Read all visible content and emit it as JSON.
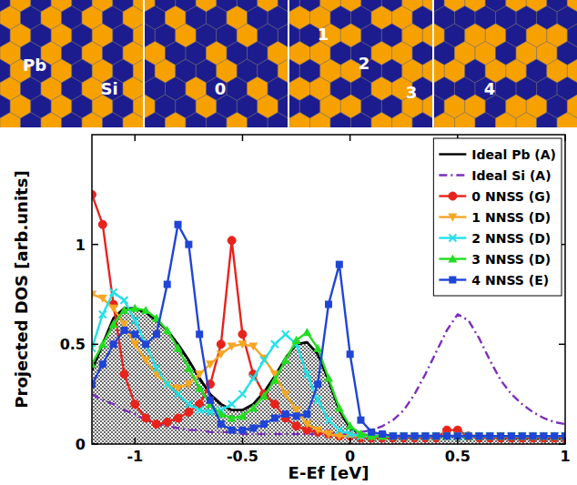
{
  "chart_data": {
    "type": "line",
    "x_label": "E-Ef [eV]",
    "y_label": "Projected DOS [arb.units]",
    "x": [
      -1.2,
      -1.15,
      -1.1,
      -1.05,
      -1.0,
      -0.95,
      -0.9,
      -0.85,
      -0.8,
      -0.75,
      -0.7,
      -0.65,
      -0.6,
      -0.55,
      -0.5,
      -0.45,
      -0.4,
      -0.35,
      -0.3,
      -0.25,
      -0.2,
      -0.15,
      -0.1,
      -0.05,
      0,
      0.05,
      0.1,
      0.15,
      0.2,
      0.25,
      0.3,
      0.35,
      0.4,
      0.45,
      0.5,
      0.55,
      0.6,
      0.65,
      0.7,
      0.75,
      0.8,
      0.85,
      0.9,
      0.95,
      1.0
    ],
    "xlim": [
      -1.2,
      1
    ],
    "xticks": [
      -1,
      -0.5,
      0,
      0.5,
      1
    ],
    "ylim": [
      0,
      1.55
    ],
    "yticks": [
      0,
      0.5,
      1
    ],
    "legend": "upper right",
    "series": [
      {
        "name": "Ideal Pb (A)",
        "type": "area",
        "color": "#000000",
        "line_style": "solid",
        "marker": "none",
        "values": [
          0.37,
          0.5,
          0.63,
          0.68,
          0.68,
          0.66,
          0.62,
          0.57,
          0.5,
          0.42,
          0.33,
          0.25,
          0.2,
          0.17,
          0.17,
          0.2,
          0.26,
          0.34,
          0.43,
          0.5,
          0.51,
          0.45,
          0.32,
          0.17,
          0.08,
          0.05,
          0.04,
          0.04,
          0.04,
          0.04,
          0.04,
          0.04,
          0.04,
          0.04,
          0.04,
          0.04,
          0.04,
          0.04,
          0.03,
          0.03,
          0.03,
          0.03,
          0.03,
          0.03,
          0.03
        ]
      },
      {
        "name": "Ideal Si (A)",
        "type": "line",
        "color": "#7b2fbe",
        "line_style": "dash-dot",
        "marker": "none",
        "values": [
          0.25,
          0.22,
          0.2,
          0.17,
          0.15,
          0.12,
          0.1,
          0.09,
          0.08,
          0.07,
          0.07,
          0.06,
          0.06,
          0.06,
          0.05,
          0.05,
          0.05,
          0.05,
          0.05,
          0.05,
          0.05,
          0.05,
          0.05,
          0.05,
          0.05,
          0.06,
          0.07,
          0.09,
          0.12,
          0.17,
          0.25,
          0.35,
          0.46,
          0.57,
          0.65,
          0.62,
          0.53,
          0.42,
          0.32,
          0.25,
          0.2,
          0.16,
          0.13,
          0.11,
          0.1
        ]
      },
      {
        "name": "0 NNSS (G)",
        "type": "line",
        "color": "#e8231c",
        "line_style": "solid",
        "marker": "circle",
        "values": [
          1.25,
          1.1,
          0.7,
          0.35,
          0.2,
          0.13,
          0.1,
          0.11,
          0.13,
          0.16,
          0.2,
          0.3,
          0.5,
          1.02,
          0.55,
          0.35,
          0.25,
          0.2,
          0.13,
          0.09,
          0.07,
          0.06,
          0.05,
          0.04,
          0.04,
          0.03,
          0.03,
          0.03,
          0.03,
          0.03,
          0.03,
          0.03,
          0.03,
          0.07,
          0.07,
          0.04,
          0.03,
          0.03,
          0.03,
          0.03,
          0.03,
          0.03,
          0.03,
          0.03,
          0.03
        ]
      },
      {
        "name": "1 NNSS (D)",
        "type": "line",
        "color": "#f5a623",
        "line_style": "solid",
        "marker": "triangle-down",
        "values": [
          0.75,
          0.73,
          0.68,
          0.6,
          0.5,
          0.42,
          0.35,
          0.3,
          0.28,
          0.3,
          0.35,
          0.4,
          0.45,
          0.49,
          0.5,
          0.49,
          0.43,
          0.35,
          0.25,
          0.17,
          0.1,
          0.07,
          0.05,
          0.04,
          0.04,
          0.04,
          0.04,
          0.04,
          0.04,
          0.04,
          0.04,
          0.04,
          0.04,
          0.04,
          0.04,
          0.04,
          0.04,
          0.04,
          0.04,
          0.04,
          0.04,
          0.04,
          0.04,
          0.04,
          0.04
        ]
      },
      {
        "name": "2 NNSS (D)",
        "type": "line",
        "color": "#22e0e8",
        "line_style": "solid",
        "marker": "x",
        "values": [
          0.48,
          0.65,
          0.76,
          0.72,
          0.62,
          0.5,
          0.38,
          0.3,
          0.25,
          0.2,
          0.17,
          0.16,
          0.17,
          0.2,
          0.25,
          0.33,
          0.42,
          0.5,
          0.55,
          0.5,
          0.35,
          0.22,
          0.12,
          0.07,
          0.05,
          0.04,
          0.04,
          0.04,
          0.04,
          0.04,
          0.04,
          0.04,
          0.04,
          0.04,
          0.04,
          0.04,
          0.04,
          0.04,
          0.04,
          0.04,
          0.04,
          0.04,
          0.04,
          0.04,
          0.04
        ]
      },
      {
        "name": "3 NNSS (D)",
        "type": "line",
        "color": "#22dd22",
        "line_style": "solid",
        "marker": "triangle-up",
        "values": [
          0.4,
          0.5,
          0.6,
          0.67,
          0.68,
          0.67,
          0.63,
          0.57,
          0.48,
          0.38,
          0.28,
          0.2,
          0.15,
          0.13,
          0.14,
          0.18,
          0.24,
          0.32,
          0.42,
          0.52,
          0.56,
          0.48,
          0.33,
          0.18,
          0.09,
          0.05,
          0.04,
          0.04,
          0.04,
          0.04,
          0.04,
          0.04,
          0.04,
          0.04,
          0.04,
          0.04,
          0.04,
          0.04,
          0.04,
          0.04,
          0.04,
          0.04,
          0.04,
          0.04,
          0.04
        ]
      },
      {
        "name": "4 NNSS (E)",
        "type": "line",
        "color": "#1f45d6",
        "line_style": "solid",
        "marker": "square",
        "values": [
          0.3,
          0.4,
          0.5,
          0.57,
          0.55,
          0.5,
          0.55,
          0.8,
          1.1,
          1.0,
          0.55,
          0.22,
          0.1,
          0.07,
          0.07,
          0.08,
          0.1,
          0.13,
          0.15,
          0.14,
          0.15,
          0.3,
          0.7,
          0.9,
          0.45,
          0.12,
          0.06,
          0.05,
          0.04,
          0.04,
          0.04,
          0.04,
          0.04,
          0.04,
          0.04,
          0.04,
          0.04,
          0.04,
          0.04,
          0.04,
          0.04,
          0.04,
          0.04,
          0.04,
          0.04
        ]
      }
    ]
  },
  "structure_panels": [
    {
      "labels": [
        "Pb",
        "Si"
      ]
    },
    {
      "labels": [
        "0"
      ]
    },
    {
      "labels": [
        "1",
        "2",
        "3"
      ]
    },
    {
      "labels": [
        "4"
      ]
    }
  ]
}
